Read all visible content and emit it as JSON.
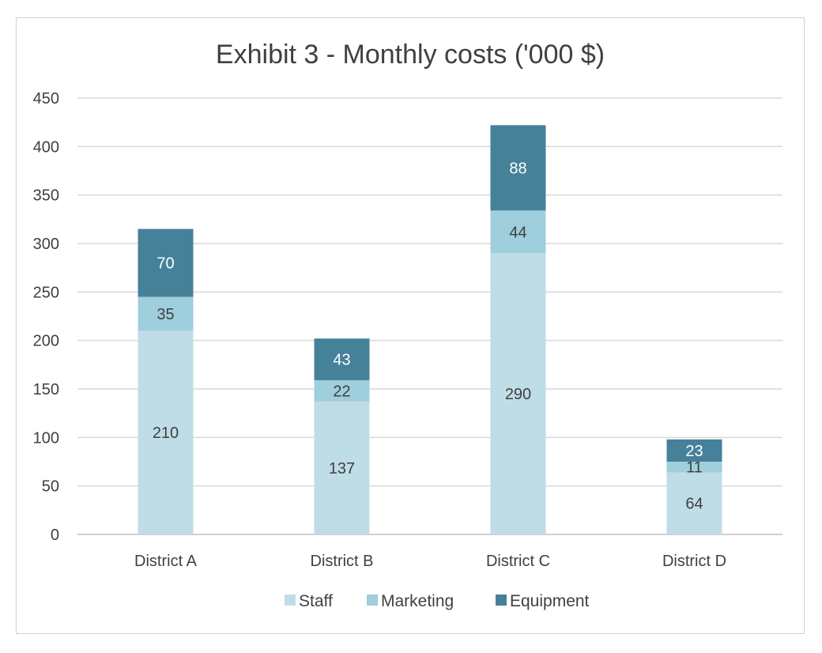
{
  "chart_data": {
    "type": "bar",
    "stacked": true,
    "title": "Exhibit 3 - Monthly costs ('000 $)",
    "xlabel": "",
    "ylabel": "",
    "ylim": [
      0,
      450
    ],
    "yticks": [
      0,
      50,
      100,
      150,
      200,
      250,
      300,
      350,
      400,
      450
    ],
    "grid": true,
    "legend_position": "bottom",
    "categories": [
      "District A",
      "District B",
      "District C",
      "District D"
    ],
    "series": [
      {
        "name": "Staff",
        "color": "#bfdde6",
        "label_color": "#404040",
        "values": [
          210,
          137,
          290,
          64
        ]
      },
      {
        "name": "Marketing",
        "color": "#9fcedc",
        "label_color": "#404040",
        "values": [
          35,
          22,
          44,
          11
        ]
      },
      {
        "name": "Equipment",
        "color": "#46819a",
        "label_color": "#ffffff",
        "values": [
          70,
          43,
          88,
          23
        ]
      }
    ]
  }
}
